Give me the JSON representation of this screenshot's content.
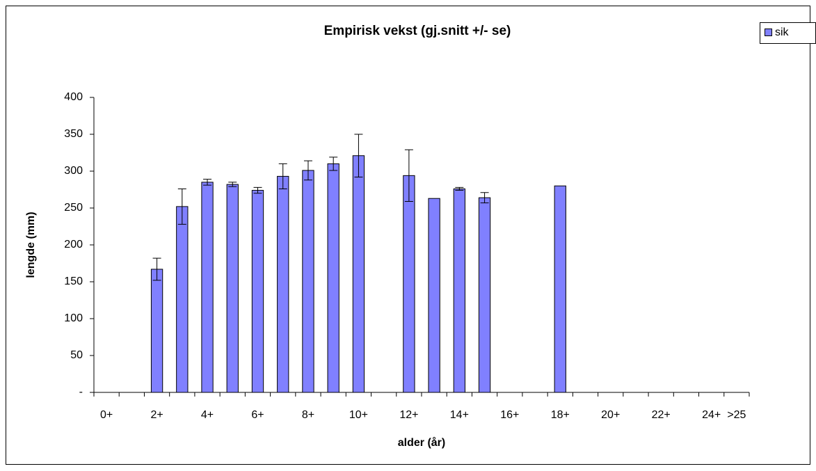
{
  "chart_data": {
    "type": "bar",
    "title": "Empirisk vekst (gj.snitt +/- se)",
    "xlabel": "alder (år)",
    "ylabel": "lengde (mm)",
    "categories": [
      "0+",
      null,
      "2+",
      null,
      "4+",
      null,
      "6+",
      null,
      "8+",
      null,
      "10+",
      null,
      "12+",
      null,
      "14+",
      null,
      "16+",
      null,
      "18+",
      null,
      "20+",
      null,
      "22+",
      null,
      "24+",
      ">25"
    ],
    "series": [
      {
        "name": "sik",
        "color": "#8080ff",
        "values": [
          0,
          0,
          167,
          252,
          285,
          282,
          274,
          293,
          301,
          310,
          321,
          0,
          294,
          263,
          276,
          264,
          0,
          null,
          280,
          null,
          null,
          null,
          null,
          null,
          null,
          null
        ],
        "errors": [
          0,
          0,
          15,
          24,
          4,
          3,
          4,
          17,
          13,
          9,
          29,
          0,
          35,
          0,
          2,
          7,
          0,
          null,
          0,
          null,
          null,
          null,
          null,
          null,
          null,
          null
        ]
      }
    ],
    "ylim": [
      0,
      400
    ],
    "yticks": [
      {
        "value": 0,
        "label": "-"
      },
      50,
      100,
      150,
      200,
      250,
      300,
      350,
      400
    ],
    "grid": false,
    "legend": "top-right"
  }
}
